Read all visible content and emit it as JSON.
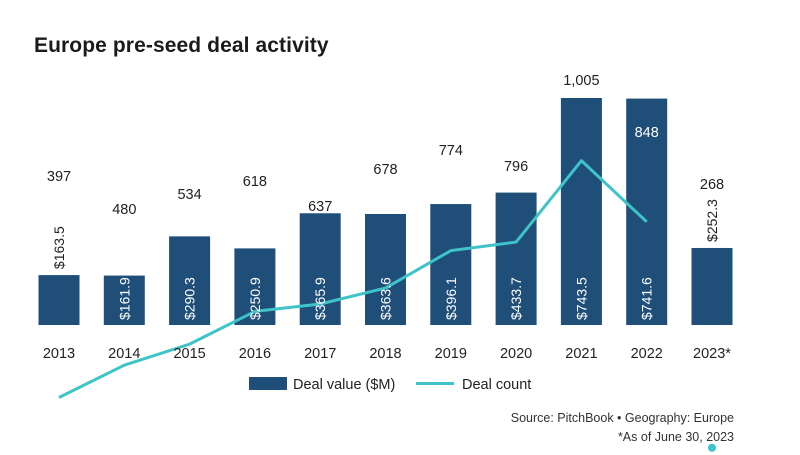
{
  "title": "Europe pre-seed deal activity",
  "chart_data": {
    "type": "bar",
    "categories": [
      "2013",
      "2014",
      "2015",
      "2016",
      "2017",
      "2018",
      "2019",
      "2020",
      "2021",
      "2022",
      "2023*"
    ],
    "series": [
      {
        "name": "Deal value ($M)",
        "type": "bar",
        "color": "#1f4e79",
        "values": [
          163.5,
          161.9,
          290.3,
          250.9,
          365.9,
          363.6,
          396.1,
          433.7,
          743.5,
          741.6,
          252.3
        ],
        "labels": [
          "$163.5",
          "$161.9",
          "$290.3",
          "$250.9",
          "$365.9",
          "$363.6",
          "$396.1",
          "$433.7",
          "$743.5",
          "$741.6",
          "$252.3"
        ]
      },
      {
        "name": "Deal count",
        "type": "line",
        "color": "#3ec3c9",
        "values": [
          397,
          480,
          534,
          618,
          637,
          678,
          774,
          796,
          1005,
          848,
          268
        ],
        "labels": [
          "397",
          "480",
          "534",
          "618",
          "637",
          "678",
          "774",
          "796",
          "1,005",
          "848",
          "268"
        ]
      }
    ],
    "legend_position": "bottom",
    "grid": false
  },
  "source": {
    "line1": "Source: PitchBook  •  Geography: Europe",
    "line2": "*As of June 30, 2023"
  }
}
